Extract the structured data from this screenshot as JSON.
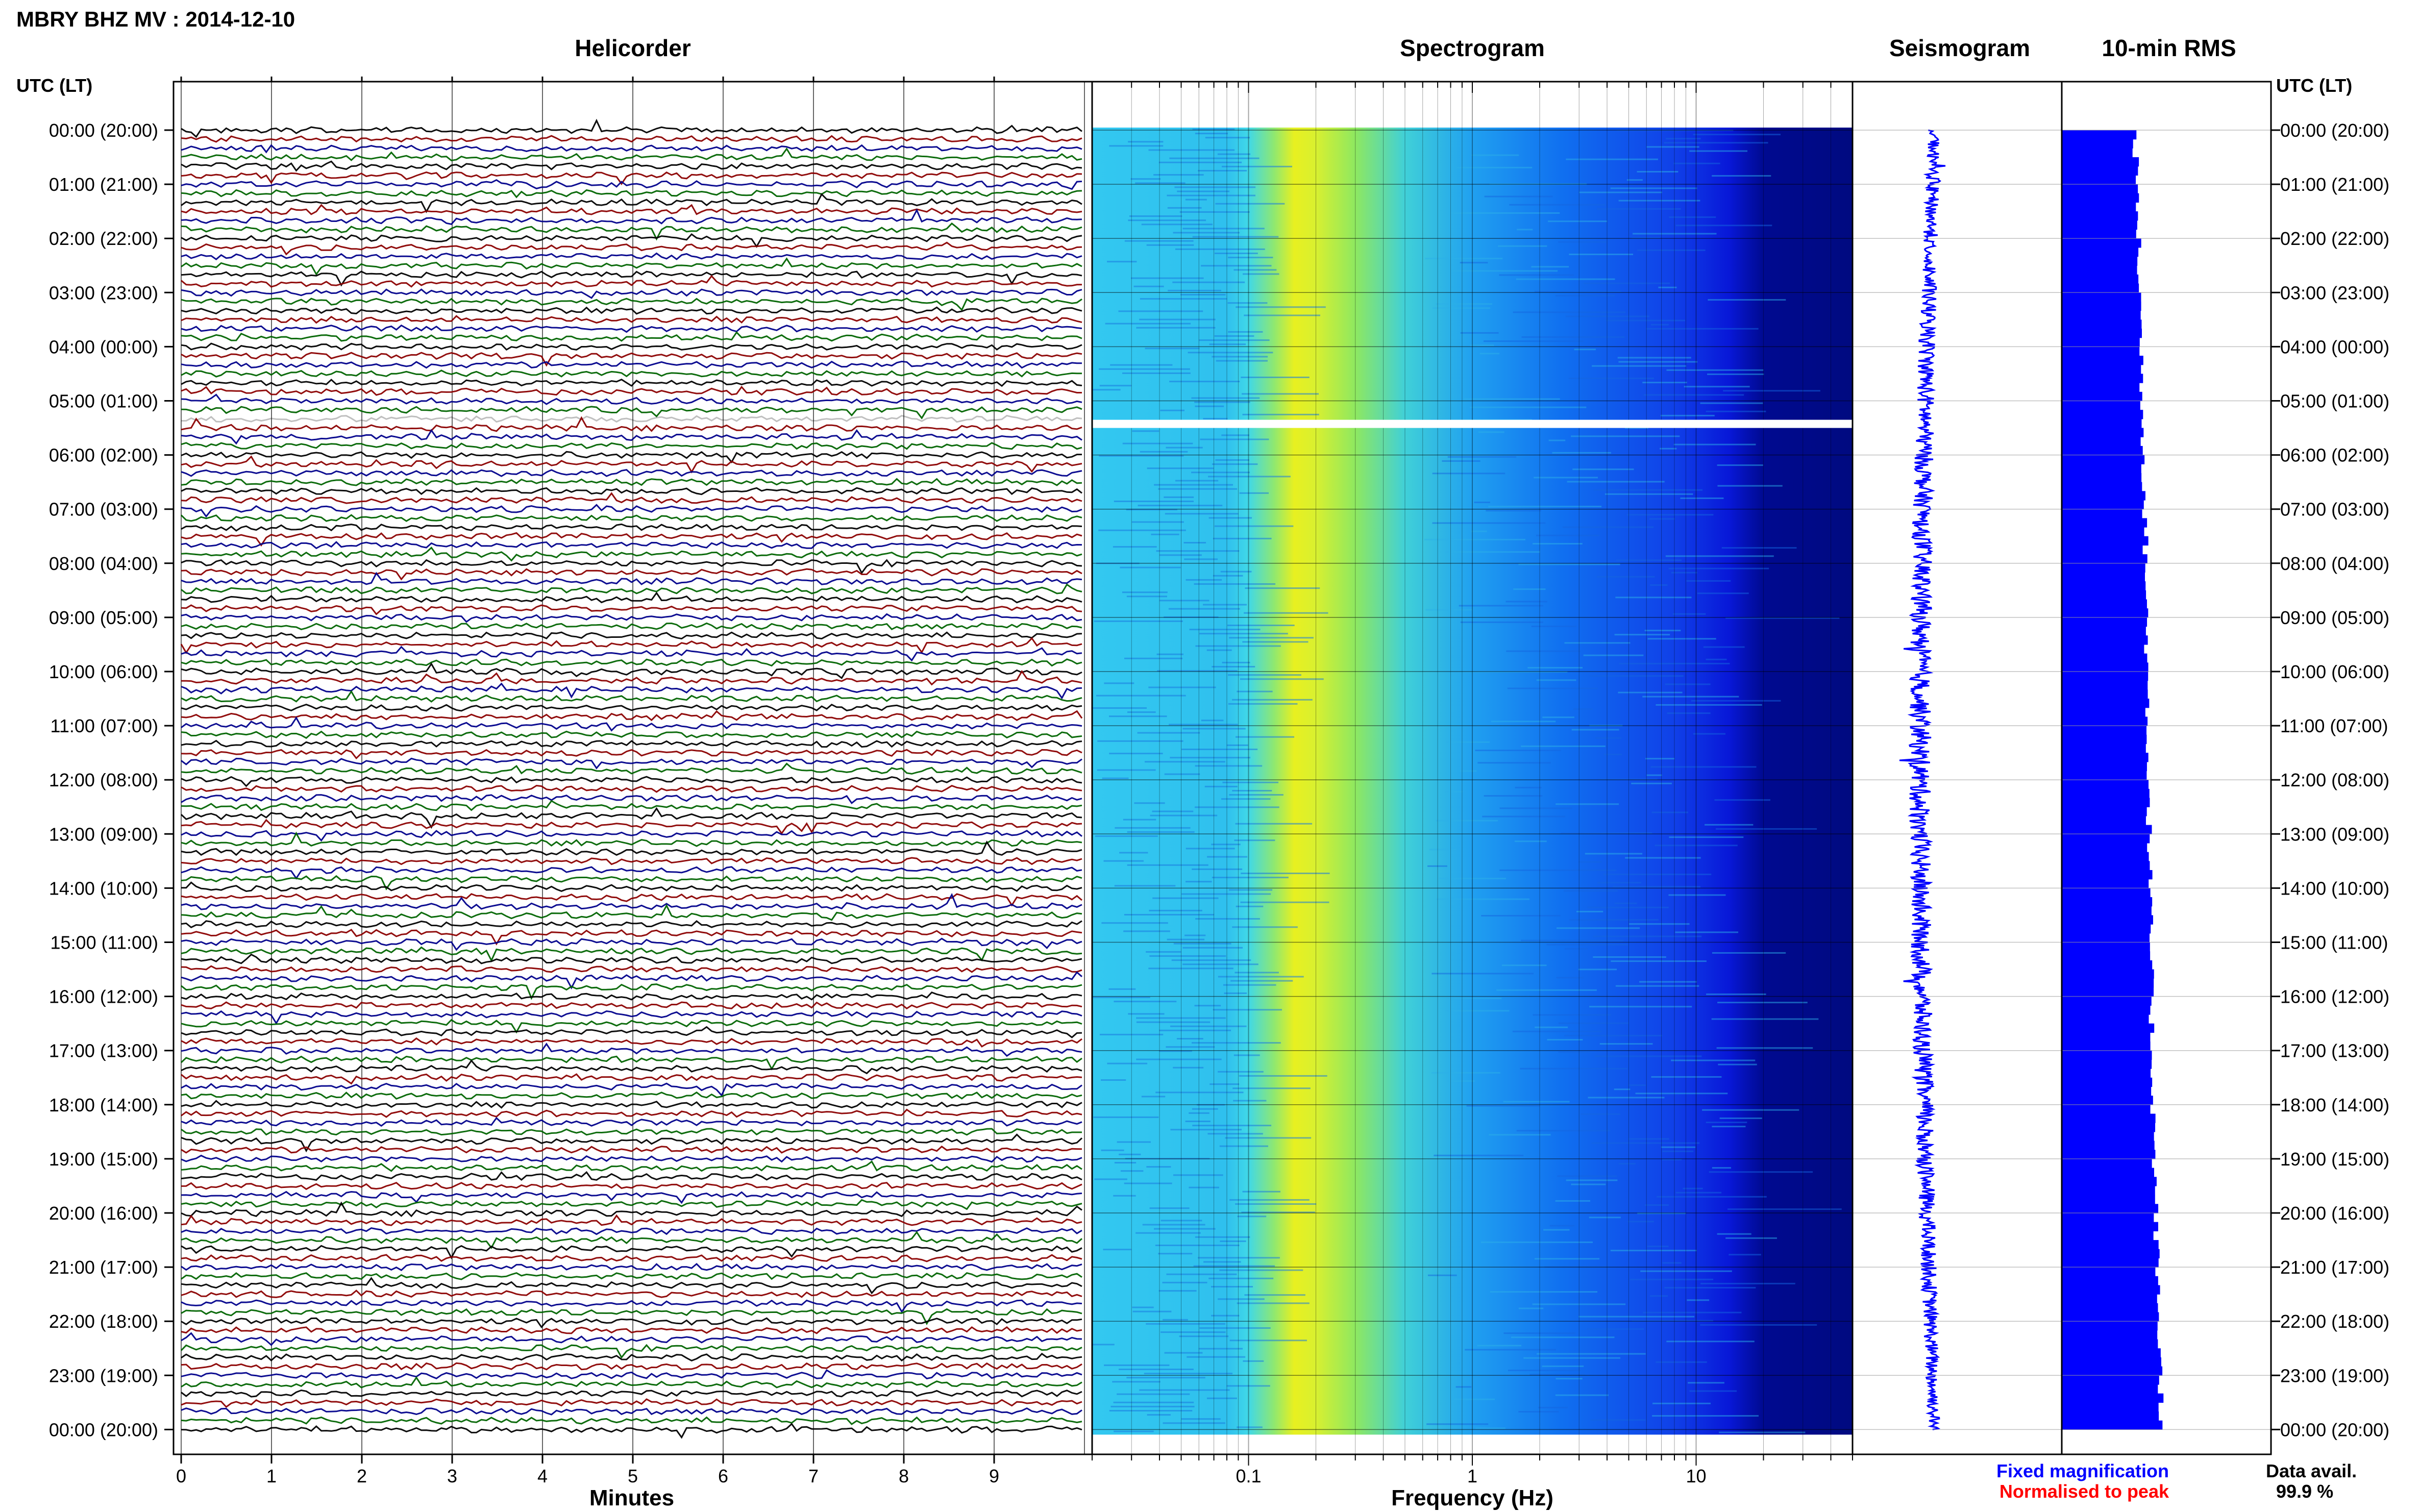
{
  "header": {
    "title": "MBRY BHZ MV : 2014-12-10",
    "utc_label": "UTC (LT)"
  },
  "panels": {
    "helicorder": "Helicorder",
    "spectrogram": "Spectrogram",
    "seismogram": "Seismogram",
    "rms": "10-min RMS"
  },
  "legend": {
    "fixed": "Fixed magnification",
    "normalised": "Normalised to peak",
    "fixed_color": "#0000ff",
    "normalised_color": "#ff0000"
  },
  "data_avail": {
    "label": "Data avail.",
    "value": "99.9 %"
  },
  "colors": {
    "trace_cycle": [
      "#000000",
      "#8b0000",
      "#00008b",
      "#006400"
    ],
    "seismogram": "#0000ff",
    "rms": "#0000ff"
  },
  "chart_data": [
    {
      "type": "line",
      "name": "helicorder",
      "title": "Helicorder",
      "xlabel": "Minutes",
      "xticks": [
        "0",
        "1",
        "2",
        "3",
        "4",
        "5",
        "6",
        "7",
        "8",
        "9"
      ],
      "xlim": [
        0,
        10
      ],
      "ylim_hours": [
        0,
        24
      ],
      "rows_per_hour": 6,
      "gap_hours": [
        5.33,
        5.5
      ]
    },
    {
      "type": "heatmap",
      "name": "spectrogram",
      "title": "Spectrogram",
      "xlabel": "Frequency (Hz)",
      "xscale": "log",
      "xlim": [
        0.02,
        50
      ],
      "xticks": [
        "0.1",
        "1",
        "10"
      ],
      "peak_frequency_hz": 0.18,
      "gap_hours": [
        5.33,
        5.5
      ]
    },
    {
      "type": "line",
      "name": "seismogram",
      "title": "Seismogram"
    },
    {
      "type": "bar",
      "name": "rms",
      "title": "10-min RMS",
      "relative_values_start": 0.35,
      "relative_values_end": 0.48
    }
  ],
  "yaxis": {
    "labels": [
      "00:00 (20:00)",
      "01:00 (21:00)",
      "02:00 (22:00)",
      "03:00 (23:00)",
      "04:00 (00:00)",
      "05:00 (01:00)",
      "06:00 (02:00)",
      "07:00 (03:00)",
      "08:00 (04:00)",
      "09:00 (05:00)",
      "10:00 (06:00)",
      "11:00 (07:00)",
      "12:00 (08:00)",
      "13:00 (09:00)",
      "14:00 (10:00)",
      "15:00 (11:00)",
      "16:00 (12:00)",
      "17:00 (13:00)",
      "18:00 (14:00)",
      "19:00 (15:00)",
      "20:00 (16:00)",
      "21:00 (17:00)",
      "22:00 (18:00)",
      "23:00 (19:00)",
      "00:00 (20:00)"
    ]
  }
}
